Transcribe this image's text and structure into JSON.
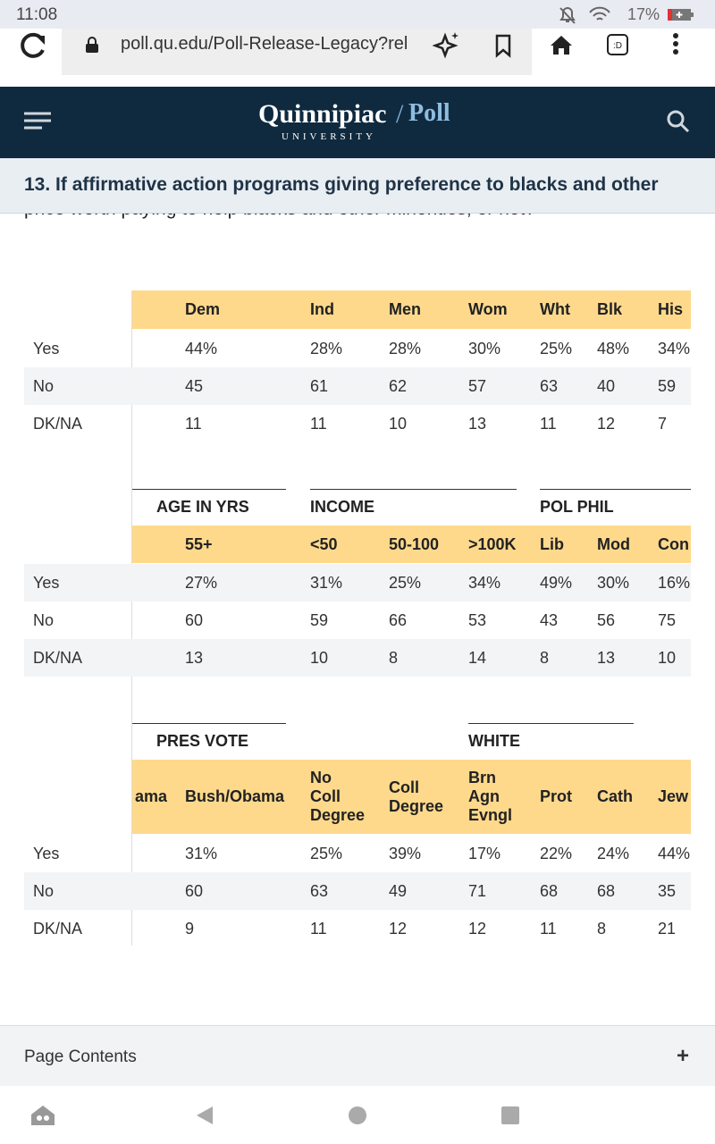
{
  "status": {
    "time": "11:08",
    "battery": "17%"
  },
  "browser": {
    "url": "poll.qu.edu/Poll-Release-Legacy?rel"
  },
  "site": {
    "logo_main": "Quinnipiac",
    "logo_sub": "Poll",
    "logo_university": "UNIVERSITY"
  },
  "question": {
    "heading": "13. If affirmative action programs giving preference to blacks and other",
    "continuation": "price worth paying to help blacks and other minorities, or not?"
  },
  "tables": [
    {
      "groups": [],
      "columns": [
        "Dem",
        "Ind",
        "Men",
        "Wom",
        "Wht",
        "Blk",
        "His"
      ],
      "rows": [
        {
          "label": "Yes",
          "values": [
            "44%",
            "28%",
            "28%",
            "30%",
            "25%",
            "48%",
            "34%"
          ]
        },
        {
          "label": "No",
          "values": [
            "45",
            "61",
            "62",
            "57",
            "63",
            "40",
            "59"
          ]
        },
        {
          "label": "DK/NA",
          "values": [
            "11",
            "11",
            "10",
            "13",
            "11",
            "12",
            "7"
          ]
        }
      ]
    },
    {
      "groups": [
        {
          "label": "AGE IN YRS"
        },
        {
          "label": "INCOME"
        },
        {
          "label": "POL PHIL"
        }
      ],
      "columns": [
        "55+",
        "<50",
        "50-100",
        ">100K",
        "Lib",
        "Mod",
        "Con"
      ],
      "rows": [
        {
          "label": "Yes",
          "values": [
            "27%",
            "31%",
            "25%",
            "34%",
            "49%",
            "30%",
            "16%"
          ]
        },
        {
          "label": "No",
          "values": [
            "60",
            "59",
            "66",
            "53",
            "43",
            "56",
            "75"
          ]
        },
        {
          "label": "DK/NA",
          "values": [
            "13",
            "10",
            "8",
            "14",
            "8",
            "13",
            "10"
          ]
        }
      ]
    },
    {
      "groups": [
        {
          "label": "PRES VOTE"
        },
        {
          "label": "WHITE"
        }
      ],
      "clipped_column": "ama",
      "columns": [
        "Bush/Obama",
        [
          "No",
          "Coll",
          "Degree"
        ],
        [
          "Coll",
          "Degree"
        ],
        [
          "Brn",
          "Agn",
          "Evngl"
        ],
        "Prot",
        "Cath",
        "Jew"
      ],
      "rows": [
        {
          "label": "Yes",
          "values": [
            "31%",
            "25%",
            "39%",
            "17%",
            "22%",
            "24%",
            "44%"
          ]
        },
        {
          "label": "No",
          "values": [
            "60",
            "63",
            "49",
            "71",
            "68",
            "68",
            "35"
          ]
        },
        {
          "label": "DK/NA",
          "values": [
            "9",
            "11",
            "12",
            "12",
            "11",
            "8",
            "21"
          ]
        }
      ]
    }
  ],
  "footer": {
    "label": "Page Contents",
    "toggle": "+"
  }
}
